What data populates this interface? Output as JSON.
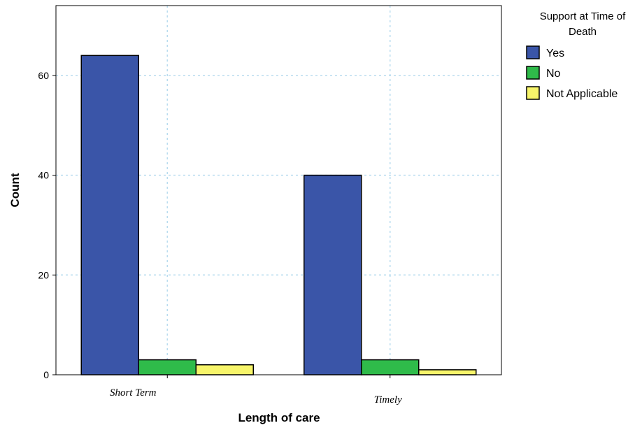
{
  "chart_data": {
    "type": "bar",
    "title": "",
    "xlabel": "Length of care",
    "ylabel": "Count",
    "categories": [
      "Short Term",
      "Timely"
    ],
    "series": [
      {
        "name": "Yes",
        "values": [
          64,
          40
        ],
        "color": "#3a55a8"
      },
      {
        "name": "No",
        "values": [
          3,
          3
        ],
        "color": "#2fbb4a"
      },
      {
        "name": "Not Applicable",
        "values": [
          2,
          1
        ],
        "color": "#f7f56a"
      }
    ],
    "ylim": [
      0,
      74
    ],
    "yticks": [
      0,
      20,
      40,
      60
    ],
    "grid": true,
    "legend": {
      "title_lines": [
        "Support at Time of",
        "Death"
      ],
      "placement": "right"
    }
  }
}
